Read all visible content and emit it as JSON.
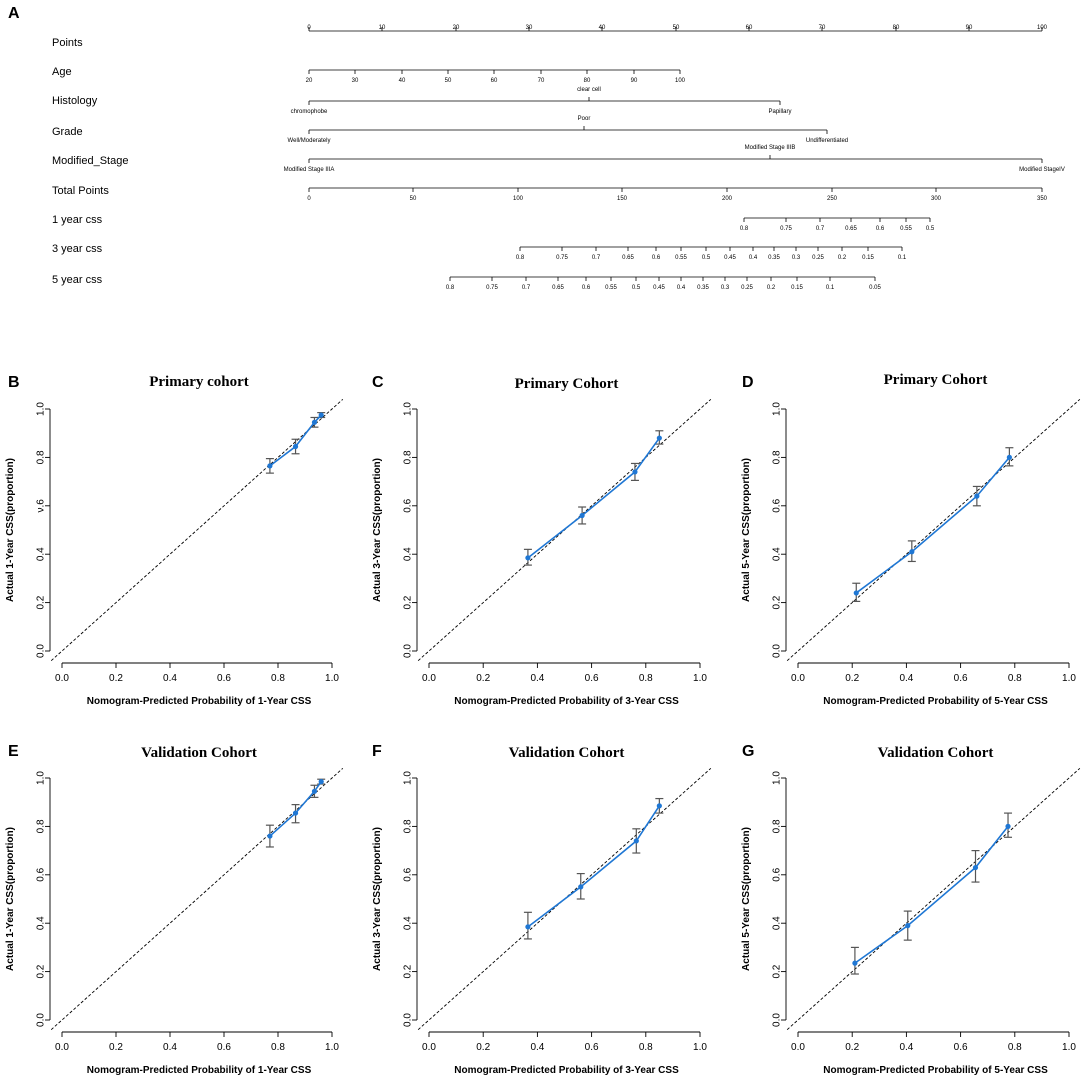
{
  "nomogram": {
    "panel_letter": "A",
    "rows": [
      {
        "label": "Points",
        "ticks": [
          "0",
          "10",
          "20",
          "30",
          "40",
          "50",
          "60",
          "70",
          "80",
          "90",
          "100"
        ]
      },
      {
        "label": "Age",
        "ticks": [
          "20",
          "30",
          "40",
          "50",
          "60",
          "70",
          "80",
          "90",
          "100"
        ]
      },
      {
        "label": "Histology",
        "ticks": [
          "chromophobe",
          "clear cell",
          "Papillary"
        ]
      },
      {
        "label": "Grade",
        "ticks": [
          "Well/Moderately",
          "Poor",
          "Undifferentiated"
        ]
      },
      {
        "label": "Modified_Stage",
        "ticks": [
          "Modified Stage IIIA",
          "Modified Stage IIIB",
          "Modified StageIV"
        ]
      },
      {
        "label": "Total Points",
        "ticks": [
          "0",
          "50",
          "100",
          "150",
          "200",
          "250",
          "300",
          "350"
        ]
      },
      {
        "label": "1 year css",
        "ticks": [
          "0.8",
          "0.75",
          "0.7",
          "0.65",
          "0.6",
          "0.55",
          "0.5"
        ]
      },
      {
        "label": "3 year css",
        "ticks": [
          "0.8",
          "0.75",
          "0.7",
          "0.65",
          "0.6",
          "0.55",
          "0.5",
          "0.45",
          "0.4",
          "0.35",
          "0.3",
          "0.25",
          "0.2",
          "0.15",
          "0.1"
        ]
      },
      {
        "label": "5 year css",
        "ticks": [
          "0.8",
          "0.75",
          "0.7",
          "0.65",
          "0.6",
          "0.55",
          "0.5",
          "0.45",
          "0.4",
          "0.35",
          "0.3",
          "0.25",
          "0.2",
          "0.15",
          "0.1",
          "0.05"
        ]
      }
    ]
  },
  "chart_data": [
    {
      "panel": "B",
      "type": "line",
      "title": "Primary cohort",
      "xlabel": "Nomogram-Predicted Probability of 1-Year CSS",
      "ylabel": "Actual 1-Year CSS(proportion)",
      "xlim": [
        0,
        1
      ],
      "ylim": [
        0,
        1
      ],
      "xticks": [
        "0.0",
        "0.2",
        "0.4",
        "0.6",
        "0.8",
        "1.0"
      ],
      "yticks": [
        "0.0",
        "0.2",
        "0.4",
        "ν.6",
        "0.8",
        "1.0"
      ],
      "reference_line": "y = x (dashed)",
      "x": [
        0.77,
        0.865,
        0.935,
        0.96
      ],
      "y": [
        0.765,
        0.845,
        0.945,
        0.975
      ],
      "err_low": [
        0.735,
        0.815,
        0.925,
        0.965
      ],
      "err_high": [
        0.795,
        0.875,
        0.965,
        0.985
      ]
    },
    {
      "panel": "C",
      "type": "line",
      "title": "Primary Cohort",
      "xlabel": "Nomogram-Predicted Probability of 3-Year CSS",
      "ylabel": "Actual 3-Year CSS(proportion)",
      "xlim": [
        0,
        1
      ],
      "ylim": [
        0,
        1
      ],
      "xticks": [
        "0.0",
        "0.2",
        "0.4",
        "0.6",
        "0.8",
        "1.0"
      ],
      "yticks": [
        "0.0",
        "0.2",
        "0.4",
        "0.6",
        "0.8",
        "1.0"
      ],
      "reference_line": "y = x (dashed)",
      "x": [
        0.365,
        0.565,
        0.76,
        0.85
      ],
      "y": [
        0.385,
        0.56,
        0.74,
        0.88
      ],
      "err_low": [
        0.355,
        0.525,
        0.705,
        0.855
      ],
      "err_high": [
        0.42,
        0.595,
        0.775,
        0.91
      ]
    },
    {
      "panel": "D",
      "type": "line",
      "title": "Primary Cohort",
      "xlabel": "Nomogram-Predicted Probability of 5-Year CSS",
      "ylabel": "Actual 5-Year CSS(proportion)",
      "xlim": [
        0,
        1
      ],
      "ylim": [
        0,
        1
      ],
      "xticks": [
        "0.0",
        "0.2",
        "0.4",
        "0.6",
        "0.8",
        "1.0"
      ],
      "yticks": [
        "0.0",
        "0.2",
        "0.4",
        "0.6",
        "0.8",
        "1.0"
      ],
      "reference_line": "y = x (dashed)",
      "x": [
        0.215,
        0.42,
        0.66,
        0.78
      ],
      "y": [
        0.24,
        0.41,
        0.64,
        0.8
      ],
      "err_low": [
        0.205,
        0.37,
        0.6,
        0.765
      ],
      "err_high": [
        0.28,
        0.455,
        0.68,
        0.84
      ]
    },
    {
      "panel": "E",
      "type": "line",
      "title": "Validation Cohort",
      "xlabel": "Nomogram-Predicted Probability of 1-Year CSS",
      "ylabel": "Actual 1-Year CSS(proportion)",
      "xlim": [
        0,
        1
      ],
      "ylim": [
        0,
        1
      ],
      "xticks": [
        "0.0",
        "0.2",
        "0.4",
        "0.6",
        "0.8",
        "1.0"
      ],
      "yticks": [
        "0.0",
        "0.2",
        "0.4",
        "0.6",
        "0.8",
        "1.0"
      ],
      "reference_line": "y = x (dashed)",
      "x": [
        0.77,
        0.865,
        0.935,
        0.96
      ],
      "y": [
        0.76,
        0.855,
        0.945,
        0.985
      ],
      "err_low": [
        0.715,
        0.815,
        0.92,
        0.975
      ],
      "err_high": [
        0.805,
        0.89,
        0.97,
        0.995
      ]
    },
    {
      "panel": "F",
      "type": "line",
      "title": "Validation Cohort",
      "xlabel": "Nomogram-Predicted Probability of 3-Year CSS",
      "ylabel": "Actual 3-Year CSS(proportion)",
      "xlim": [
        0,
        1
      ],
      "ylim": [
        0,
        1
      ],
      "xticks": [
        "0.0",
        "0.2",
        "0.4",
        "0.6",
        "0.8",
        "1.0"
      ],
      "yticks": [
        "0.0",
        "0.2",
        "0.4",
        "0.6",
        "0.8",
        "1.0"
      ],
      "reference_line": "y = x (dashed)",
      "x": [
        0.365,
        0.56,
        0.765,
        0.85
      ],
      "y": [
        0.385,
        0.55,
        0.74,
        0.885
      ],
      "err_low": [
        0.335,
        0.5,
        0.69,
        0.855
      ],
      "err_high": [
        0.445,
        0.605,
        0.79,
        0.915
      ]
    },
    {
      "panel": "G",
      "type": "line",
      "title": "Validation Cohort",
      "xlabel": "Nomogram-Predicted Probability of 5-Year CSS",
      "ylabel": "Actual 5-Year CSS(proportion)",
      "xlim": [
        0,
        1
      ],
      "ylim": [
        0,
        1
      ],
      "xticks": [
        "0.0",
        "0.2",
        "0.4",
        "0.6",
        "0.8",
        "1.0"
      ],
      "yticks": [
        "0.0",
        "0.2",
        "0.4",
        "0.6",
        "0.8",
        "1.0"
      ],
      "reference_line": "y = x (dashed)",
      "x": [
        0.21,
        0.405,
        0.655,
        0.775
      ],
      "y": [
        0.235,
        0.39,
        0.63,
        0.8
      ],
      "err_low": [
        0.19,
        0.33,
        0.57,
        0.755
      ],
      "err_high": [
        0.3,
        0.45,
        0.7,
        0.855
      ]
    }
  ],
  "colors": {
    "series": "#1f77d4",
    "errorbar": "#555555",
    "reference": "#000000",
    "axis": "#000000"
  }
}
